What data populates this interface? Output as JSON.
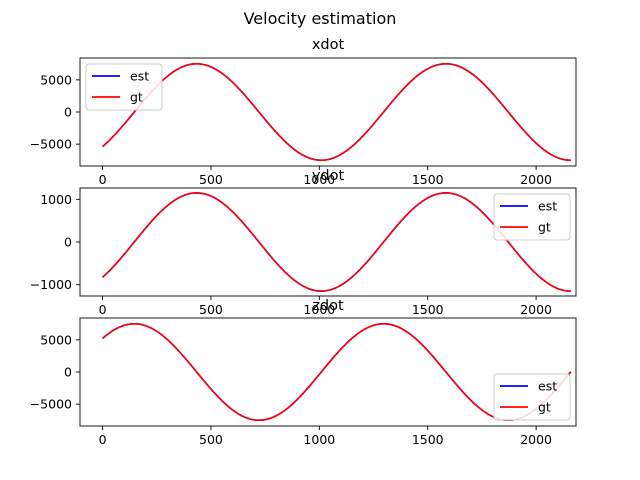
{
  "figure": {
    "suptitle": "Velocity estimation"
  },
  "colors": {
    "est": "#0000ff",
    "gt": "#ff0000",
    "axes": "#000000"
  },
  "chart_data": [
    {
      "type": "line",
      "title": "xdot",
      "xlim": [
        -104,
        2184
      ],
      "ylim": [
        -8400,
        8400
      ],
      "xticks": [
        0,
        500,
        1000,
        1500,
        2000
      ],
      "yticks": [
        -5000,
        0,
        5000
      ],
      "legend": {
        "position": "upper-left",
        "entries": [
          "est",
          "gt"
        ]
      },
      "curve": {
        "amplitude": 7500,
        "phase_at_x0_rad": -0.8,
        "period_x": 1150,
        "x_range": [
          0,
          2160
        ]
      },
      "series": [
        {
          "name": "est",
          "color": "#0000ff"
        },
        {
          "name": "gt",
          "color": "#ff0000"
        }
      ]
    },
    {
      "type": "line",
      "title": "ydot",
      "xlim": [
        -104,
        2184
      ],
      "ylim": [
        -1265,
        1265
      ],
      "xticks": [
        0,
        500,
        1000,
        1500,
        2000
      ],
      "yticks": [
        -1000,
        0,
        1000
      ],
      "legend": {
        "position": "upper-right",
        "entries": [
          "est",
          "gt"
        ]
      },
      "curve": {
        "amplitude": 1150,
        "phase_at_x0_rad": -0.8,
        "period_x": 1150,
        "x_range": [
          0,
          2160
        ]
      },
      "series": [
        {
          "name": "est",
          "color": "#0000ff"
        },
        {
          "name": "gt",
          "color": "#ff0000"
        }
      ]
    },
    {
      "type": "line",
      "title": "zdot",
      "xlim": [
        -104,
        2184
      ],
      "ylim": [
        -8400,
        8400
      ],
      "xticks": [
        0,
        500,
        1000,
        1500,
        2000
      ],
      "yticks": [
        -5000,
        0,
        5000
      ],
      "legend": {
        "position": "lower-right",
        "entries": [
          "est",
          "gt"
        ]
      },
      "curve": {
        "amplitude": 7500,
        "phase_at_x0_rad": 0.77,
        "period_x": 1150,
        "x_range": [
          0,
          2160
        ]
      },
      "series": [
        {
          "name": "est",
          "color": "#0000ff"
        },
        {
          "name": "gt",
          "color": "#ff0000"
        }
      ]
    }
  ]
}
